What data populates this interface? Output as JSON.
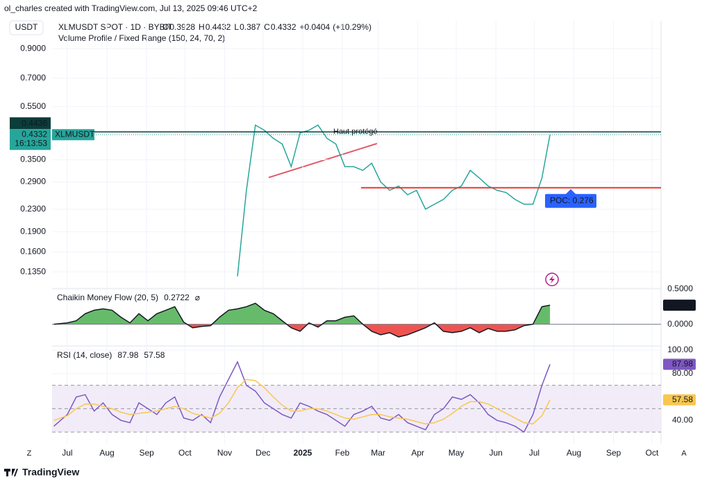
{
  "header": "ol_charles created with TradingView.com, Jul 13, 2025 09:46 UTC+2",
  "currency": "USDT",
  "symbol_line": "XLMUSDT SPOT · 1D · BYBIT",
  "ohlc": [
    {
      "label": "O",
      "value": 0.3928
    },
    {
      "label": "H",
      "value": 0.4432
    },
    {
      "label": "L",
      "value": 0.387
    },
    {
      "label": "C",
      "value": 0.4332
    }
  ],
  "change": {
    "value": 0.0404,
    "label": "+0.0404"
  },
  "change_pct": {
    "value": 10.29,
    "label": "(+10.29%)"
  },
  "indicator": "Volume Profile / Fixed Range (150, 24, 70, 2)",
  "footer": "TradingView",
  "corner_left": "Z",
  "corner_right": "A",
  "chart_data": [
    {
      "type": "line",
      "log_scale": true,
      "grid": true,
      "xlim": [
        -1.7,
        66.3
      ],
      "ylim": [
        0.118,
        1.14
      ],
      "yticks": [
        {
          "value": 0.9,
          "label": "0.9000"
        },
        {
          "value": 0.7,
          "label": "0.7000"
        },
        {
          "value": 0.55,
          "label": "0.5500"
        },
        {
          "value": 0.35,
          "label": "0.3500"
        },
        {
          "value": 0.29,
          "label": "0.2900"
        },
        {
          "value": 0.23,
          "label": "0.2300"
        },
        {
          "value": 0.19,
          "label": "0.1900"
        },
        {
          "value": 0.16,
          "label": "0.1600"
        },
        {
          "value": 0.135,
          "label": "0.1350"
        }
      ],
      "series": [
        {
          "color": "#26a69a",
          "x": [
            19,
            20,
            21,
            22,
            23,
            24,
            25,
            26,
            27,
            28,
            29,
            30,
            31,
            32,
            33,
            34,
            35,
            36,
            37,
            38,
            39,
            40,
            41,
            42,
            43,
            44,
            45,
            46,
            47,
            48,
            49,
            50,
            51,
            52,
            53,
            53.9
          ],
          "values": [
            0.13,
            0.27,
            0.47,
            0.45,
            0.42,
            0.4,
            0.33,
            0.44,
            0.45,
            0.47,
            0.42,
            0.4,
            0.33,
            0.33,
            0.32,
            0.34,
            0.29,
            0.27,
            0.28,
            0.26,
            0.27,
            0.23,
            0.24,
            0.25,
            0.27,
            0.28,
            0.32,
            0.3,
            0.28,
            0.27,
            0.265,
            0.25,
            0.24,
            0.24,
            0.3,
            0.4332
          ]
        }
      ],
      "high_line": {
        "value": 0.4436,
        "color": "#0b3d3a"
      },
      "symbol_tag": "XLMUSDT",
      "countdown": "16:13:53",
      "annotation": "Haut protégé",
      "poc": {
        "value": 0.276,
        "label": "POC: 0.276",
        "color": "#e53935"
      }
    },
    {
      "type": "area",
      "title": "Chaikin Money Flow (20, 5)",
      "symbol": "⌀",
      "xlim": [
        -1.7,
        66.3
      ],
      "ylim": [
        -0.3,
        0.5
      ],
      "yticks": [
        {
          "value": 0.5,
          "label": "0.5000"
        },
        {
          "value": 0,
          "label": "0.0000"
        }
      ],
      "positive_color": "#66bb6a",
      "negative_color": "#ef5350",
      "series": [
        {
          "color": "#131722",
          "x": [
            -1.5,
            0,
            1,
            2,
            3,
            4,
            5,
            6,
            7,
            8,
            9,
            10,
            11,
            12,
            13,
            14,
            15,
            16,
            17,
            18,
            19,
            20,
            21,
            22,
            23,
            24,
            25,
            26,
            27,
            28,
            29,
            30,
            31,
            32,
            33,
            34,
            35,
            36,
            37,
            38,
            39,
            40,
            41,
            42,
            43,
            44,
            45,
            46,
            47,
            48,
            49,
            50,
            51,
            52,
            53,
            53.9
          ],
          "values": [
            0.0,
            0.02,
            0.05,
            0.15,
            0.2,
            0.22,
            0.2,
            0.1,
            0.02,
            0.15,
            0.05,
            0.15,
            0.2,
            0.25,
            0.03,
            -0.05,
            -0.03,
            -0.02,
            0.1,
            0.2,
            0.22,
            0.25,
            0.3,
            0.2,
            0.15,
            0.05,
            -0.05,
            -0.1,
            0.02,
            -0.04,
            0.05,
            0.05,
            0.1,
            0.12,
            0.0,
            -0.1,
            -0.15,
            -0.12,
            -0.18,
            -0.15,
            -0.1,
            -0.05,
            0.02,
            -0.1,
            -0.12,
            -0.1,
            -0.05,
            -0.12,
            -0.06,
            -0.1,
            -0.1,
            -0.08,
            -0.02,
            0.0,
            0.25,
            0.2722
          ]
        }
      ]
    },
    {
      "type": "line",
      "title": "RSI (14, close)",
      "xlim": [
        -1.7,
        66.3
      ],
      "ylim": [
        20,
        103
      ],
      "yticks": [
        {
          "value": 100,
          "label": "100.00"
        },
        {
          "value": 80,
          "label": "80.00"
        },
        {
          "value": 40,
          "label": "40.00"
        }
      ],
      "bands": [
        70,
        30
      ],
      "middle": 50,
      "band_color": "#ede7f6",
      "xticks": [
        {
          "value": 0,
          "label": "Jul"
        },
        {
          "value": 4.43,
          "label": "Aug"
        },
        {
          "value": 8.86,
          "label": "Sep"
        },
        {
          "value": 13.14,
          "label": "Oct"
        },
        {
          "value": 17.57,
          "label": "Nov"
        },
        {
          "value": 21.86,
          "label": "Dec"
        },
        {
          "value": 26.29,
          "label": "2025"
        },
        {
          "value": 30.71,
          "label": "Feb"
        },
        {
          "value": 34.71,
          "label": "Mar"
        },
        {
          "value": 39.14,
          "label": "Apr"
        },
        {
          "value": 43.43,
          "label": "May"
        },
        {
          "value": 47.86,
          "label": "Jun"
        },
        {
          "value": 52.14,
          "label": "Jul"
        },
        {
          "value": 56.57,
          "label": "Aug"
        },
        {
          "value": 61,
          "label": "Sep"
        },
        {
          "value": 65.29,
          "label": "Oct"
        }
      ],
      "series": [
        {
          "color": "#7e57c2",
          "x": [
            -1.5,
            0,
            1,
            2,
            3,
            4,
            5,
            6,
            7,
            8,
            9,
            10,
            11,
            12,
            13,
            14,
            15,
            16,
            17,
            18,
            19,
            20,
            21,
            22,
            23,
            24,
            25,
            26,
            27,
            28,
            29,
            30,
            31,
            32,
            33,
            34,
            35,
            36,
            37,
            38,
            39,
            40,
            41,
            42,
            43,
            44,
            45,
            46,
            47,
            48,
            49,
            50,
            51,
            52,
            53,
            53.9
          ],
          "values": [
            35,
            45,
            60,
            62,
            48,
            55,
            45,
            40,
            38,
            55,
            50,
            45,
            55,
            60,
            42,
            40,
            45,
            38,
            60,
            75,
            90,
            70,
            65,
            55,
            50,
            45,
            42,
            55,
            52,
            48,
            45,
            40,
            35,
            45,
            48,
            52,
            42,
            40,
            45,
            38,
            35,
            32,
            45,
            50,
            60,
            58,
            62,
            55,
            45,
            40,
            38,
            35,
            30,
            45,
            70,
            87.98
          ]
        },
        {
          "color": "#f9c74f",
          "x": [
            -1.5,
            0,
            1,
            2,
            3,
            4,
            5,
            6,
            7,
            8,
            9,
            10,
            11,
            12,
            13,
            14,
            15,
            16,
            17,
            18,
            19,
            20,
            21,
            22,
            23,
            24,
            25,
            26,
            27,
            28,
            29,
            30,
            31,
            32,
            33,
            34,
            35,
            36,
            37,
            38,
            39,
            40,
            41,
            42,
            43,
            44,
            45,
            46,
            47,
            48,
            49,
            50,
            51,
            52,
            53,
            53.9
          ],
          "values": [
            40,
            44,
            50,
            54,
            54,
            52,
            50,
            47,
            45,
            46,
            47,
            48,
            50,
            52,
            50,
            46,
            44,
            42,
            46,
            55,
            68,
            75,
            74,
            68,
            60,
            53,
            48,
            48,
            50,
            50,
            48,
            45,
            42,
            41,
            43,
            45,
            45,
            43,
            42,
            41,
            39,
            37,
            38,
            41,
            46,
            52,
            56,
            56,
            54,
            50,
            46,
            42,
            38,
            37,
            44,
            57.58
          ]
        }
      ]
    }
  ]
}
